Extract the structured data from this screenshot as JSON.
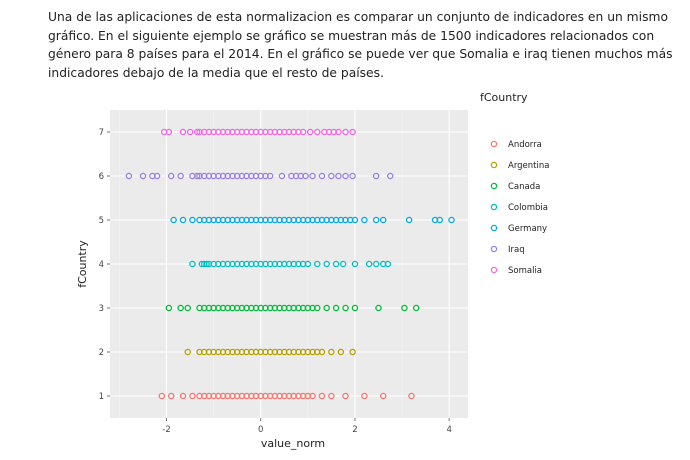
{
  "paragraph": "  Una de las aplicaciones de esta normalizacion es comparar un conjunto de indicadores en un mismo gráfico. En el siguiente ejemplo se gráfico se muestran más de 1500 indicadores relacionados con género para 8 países para el 2014. En el gráfico se puede ver que Somalia e iraq tienen muchos más indicadores debajo de la media que el resto de países.",
  "chart_data": {
    "type": "scatter",
    "xlabel": "value_norm",
    "ylabel": "fCountry",
    "xlim": [
      -3.2,
      4.4
    ],
    "ylim": [
      0.5,
      7.5
    ],
    "x_ticks": [
      -2,
      0,
      2,
      4
    ],
    "x_tick_labels": [
      "-2",
      "0",
      "2",
      "4"
    ],
    "y_ticks": [
      1,
      2,
      3,
      4,
      5,
      6,
      7
    ],
    "y_tick_labels": [
      "1",
      "2",
      "3",
      "4",
      "5",
      "6",
      "7"
    ],
    "grid": true,
    "legend": {
      "title": "fCountry",
      "position": "right"
    },
    "series": [
      {
        "name": "Andorra",
        "color": "#F8766D",
        "y": 1,
        "x": [
          -2.1,
          -1.9,
          -1.65,
          -1.45,
          -1.3,
          -1.2,
          -1.1,
          -1.0,
          -0.9,
          -0.8,
          -0.7,
          -0.6,
          -0.5,
          -0.4,
          -0.3,
          -0.2,
          -0.1,
          0.0,
          0.1,
          0.2,
          0.3,
          0.4,
          0.5,
          0.6,
          0.7,
          0.8,
          0.9,
          1.0,
          1.1,
          1.3,
          1.5,
          1.8,
          2.2,
          2.6,
          3.2
        ]
      },
      {
        "name": "Argentina",
        "color": "#B79F00",
        "y": 2,
        "x": [
          -1.55,
          -1.3,
          -1.2,
          -1.1,
          -1.0,
          -0.9,
          -0.8,
          -0.7,
          -0.6,
          -0.5,
          -0.4,
          -0.3,
          -0.2,
          -0.1,
          0.0,
          0.1,
          0.2,
          0.3,
          0.4,
          0.5,
          0.6,
          0.7,
          0.8,
          0.9,
          1.0,
          1.1,
          1.2,
          1.3,
          1.5,
          1.7,
          1.95
        ]
      },
      {
        "name": "Canada",
        "color": "#00BA38",
        "y": 3,
        "x": [
          -1.95,
          -1.7,
          -1.55,
          -1.3,
          -1.2,
          -1.1,
          -1.0,
          -0.9,
          -0.8,
          -0.7,
          -0.6,
          -0.5,
          -0.4,
          -0.3,
          -0.2,
          -0.1,
          0.0,
          0.1,
          0.2,
          0.3,
          0.4,
          0.5,
          0.6,
          0.7,
          0.8,
          0.9,
          1.0,
          1.1,
          1.2,
          1.4,
          1.6,
          1.8,
          2.0,
          2.5,
          3.05,
          3.3
        ]
      },
      {
        "name": "Colombia",
        "color": "#00BFC4",
        "y": 4,
        "x": [
          -1.45,
          -1.25,
          -1.2,
          -1.15,
          -1.1,
          -1.0,
          -0.9,
          -0.8,
          -0.7,
          -0.6,
          -0.5,
          -0.4,
          -0.3,
          -0.2,
          -0.1,
          0.0,
          0.1,
          0.2,
          0.3,
          0.4,
          0.5,
          0.6,
          0.7,
          0.8,
          0.9,
          1.0,
          1.2,
          1.4,
          1.6,
          1.75,
          2.0,
          2.3,
          2.45,
          2.6,
          2.7
        ]
      },
      {
        "name": "Germany",
        "color": "#00A9E0",
        "y": 5,
        "x": [
          -1.85,
          -1.65,
          -1.45,
          -1.3,
          -1.2,
          -1.1,
          -1.0,
          -0.9,
          -0.8,
          -0.7,
          -0.6,
          -0.5,
          -0.4,
          -0.3,
          -0.2,
          -0.1,
          0.0,
          0.1,
          0.2,
          0.3,
          0.4,
          0.5,
          0.6,
          0.7,
          0.8,
          0.9,
          1.0,
          1.1,
          1.2,
          1.3,
          1.4,
          1.5,
          1.6,
          1.7,
          1.8,
          1.9,
          2.0,
          2.2,
          2.45,
          2.6,
          3.15,
          3.7,
          3.8,
          4.05
        ]
      },
      {
        "name": "Iraq",
        "color": "#9A7FEA",
        "y": 6,
        "x": [
          -2.8,
          -2.5,
          -2.3,
          -2.2,
          -1.9,
          -1.7,
          -1.45,
          -1.35,
          -1.3,
          -1.2,
          -1.1,
          -1.0,
          -0.9,
          -0.8,
          -0.7,
          -0.6,
          -0.5,
          -0.4,
          -0.3,
          -0.2,
          -0.1,
          0.0,
          0.1,
          0.2,
          0.45,
          0.65,
          0.75,
          0.85,
          0.95,
          1.1,
          1.3,
          1.5,
          1.65,
          1.8,
          1.95,
          2.45,
          2.75
        ]
      },
      {
        "name": "Somalia",
        "color": "#F564E3",
        "y": 7,
        "x": [
          -2.05,
          -1.95,
          -1.65,
          -1.5,
          -1.35,
          -1.3,
          -1.2,
          -1.1,
          -1.0,
          -0.9,
          -0.8,
          -0.7,
          -0.6,
          -0.5,
          -0.4,
          -0.3,
          -0.2,
          -0.1,
          0.0,
          0.1,
          0.2,
          0.3,
          0.4,
          0.5,
          0.6,
          0.7,
          0.8,
          0.9,
          1.05,
          1.2,
          1.35,
          1.45,
          1.55,
          1.65,
          1.8,
          1.95
        ]
      }
    ]
  }
}
